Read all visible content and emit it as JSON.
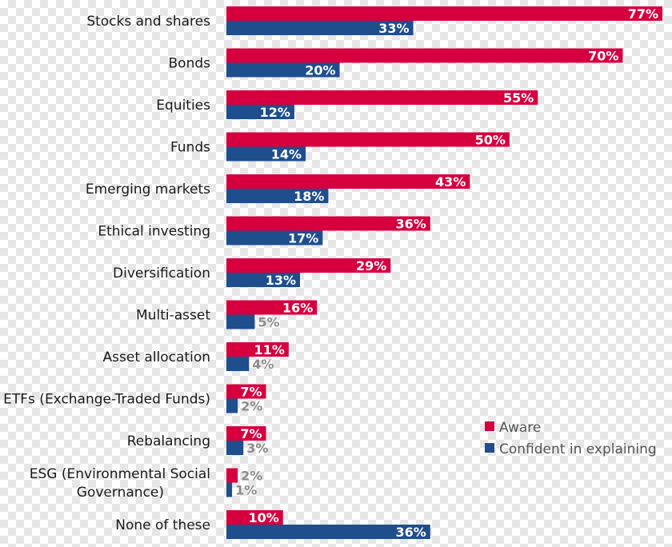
{
  "chart_data": {
    "type": "bar",
    "orientation": "horizontal",
    "title": "",
    "xlabel": "",
    "ylabel": "",
    "xlim": [
      0,
      77
    ],
    "grid": false,
    "legend_position": "bottom-right",
    "categories": [
      "Stocks and shares",
      "Bonds",
      "Equities",
      "Funds",
      "Emerging markets",
      "Ethical investing",
      "Diversification",
      "Multi-asset",
      "Asset allocation",
      "ETFs (Exchange-Traded Funds)",
      "Rebalancing",
      "ESG (Environmental Social\nGovernance)",
      "None of these"
    ],
    "series": [
      {
        "name": "Aware",
        "color": "#d6003f",
        "values": [
          77,
          70,
          55,
          50,
          43,
          36,
          29,
          16,
          11,
          7,
          7,
          2,
          10
        ],
        "labels": [
          "77%",
          "70%",
          "55%",
          "50%",
          "43%",
          "36%",
          "29%",
          "16%",
          "11%",
          "7%",
          "7%",
          "2%",
          "10%"
        ]
      },
      {
        "name": "Confident in explaining",
        "color": "#1f4e8c",
        "values": [
          33,
          20,
          12,
          14,
          18,
          17,
          13,
          5,
          4,
          2,
          3,
          1,
          36
        ],
        "labels": [
          "33%",
          "20%",
          "12%",
          "14%",
          "18%",
          "17%",
          "13%",
          "5%",
          "4%",
          "2%",
          "3%",
          "1%",
          "36%"
        ]
      }
    ]
  }
}
